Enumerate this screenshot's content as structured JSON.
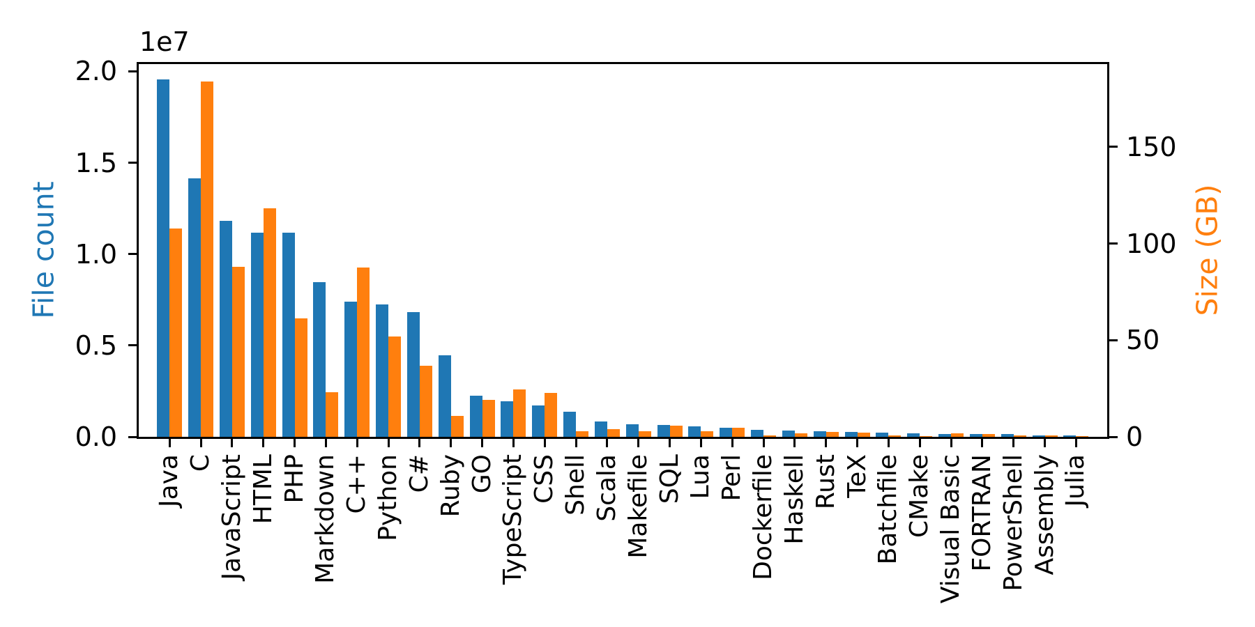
{
  "chart_data": {
    "type": "bar",
    "title": "",
    "grid": false,
    "legend": false,
    "categories": [
      "Java",
      "C",
      "JavaScript",
      "HTML",
      "PHP",
      "Markdown",
      "C++",
      "Python",
      "C#",
      "Ruby",
      "GO",
      "TypeScript",
      "CSS",
      "Shell",
      "Scala",
      "Makefile",
      "SQL",
      "Lua",
      "Perl",
      "Dockerfile",
      "Haskell",
      "Rust",
      "TeX",
      "Batchfile",
      "CMake",
      "Visual Basic",
      "FORTRAN",
      "PowerShell",
      "Assembly",
      "Julia"
    ],
    "series": [
      {
        "name": "File count",
        "axis": "left",
        "color": "#1f77b4",
        "values": [
          19548190,
          14143113,
          11839883,
          11178557,
          11177610,
          8464626,
          7380520,
          7226626,
          6811652,
          4473331,
          2265436,
          1940406,
          1734406,
          1385648,
          835755,
          679430,
          656671,
          578554,
          497949,
          366505,
          340623,
          322431,
          251015,
          236945,
          175282,
          155652,
          142038,
          136846,
          82905,
          58317
        ]
      },
      {
        "name": "Size (GB)",
        "axis": "right",
        "color": "#ff7f0e",
        "values": [
          107.7,
          183.83,
          87.82,
          118.12,
          61.41,
          23.09,
          87.73,
          52.03,
          36.83,
          10.95,
          19.28,
          24.59,
          22.67,
          3.01,
          3.87,
          2.92,
          5.67,
          2.81,
          4.7,
          0.71,
          1.85,
          2.68,
          2.15,
          0.7,
          0.54,
          1.91,
          1.62,
          0.69,
          0.78,
          0.29
        ]
      }
    ],
    "left_axis": {
      "label": "File count",
      "color": "#1f77b4",
      "offset_text": "1e7",
      "tick_values": [
        0,
        5000000,
        10000000,
        15000000,
        20000000
      ],
      "tick_labels": [
        "0.0",
        "0.5",
        "1.0",
        "1.5",
        "2.0"
      ],
      "range": [
        0,
        20400000
      ]
    },
    "right_axis": {
      "label": "Size (GB)",
      "color": "#ff7f0e",
      "tick_values": [
        0,
        50,
        100,
        150
      ],
      "tick_labels": [
        "0",
        "50",
        "100",
        "150"
      ],
      "range": [
        0,
        192.9
      ]
    },
    "x_axis": {
      "label": "",
      "tick_label_rotation": 90
    }
  }
}
